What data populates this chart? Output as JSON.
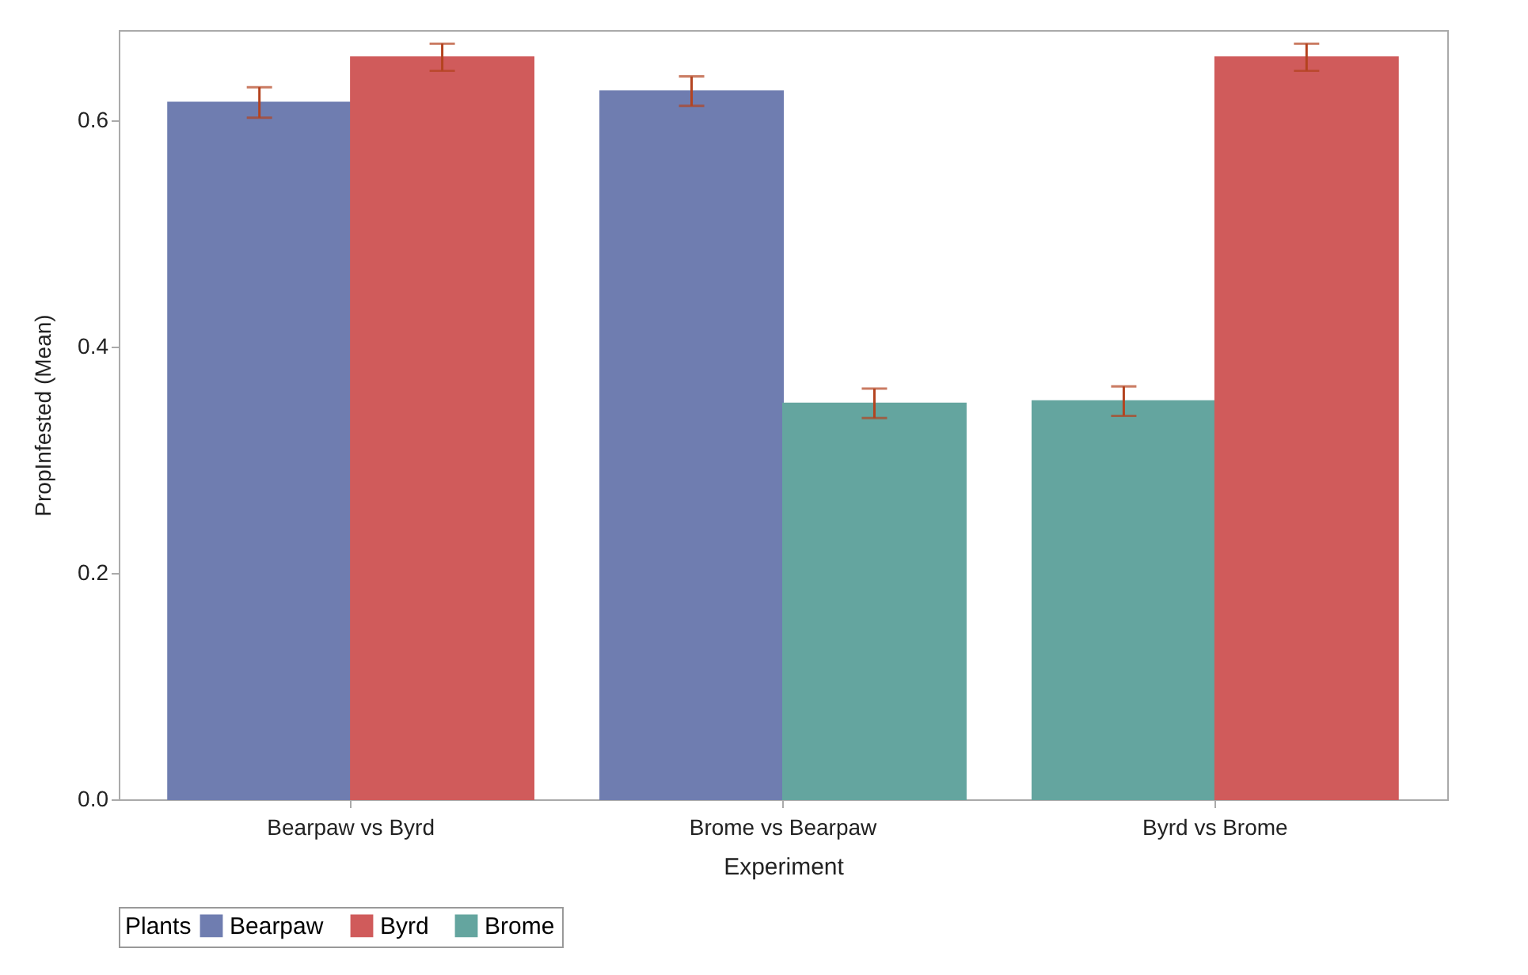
{
  "chart_data": {
    "type": "bar",
    "xlabel": "Experiment",
    "ylabel": "PropInfested (Mean)",
    "legend_title": "Plants",
    "categories": [
      "Bearpaw vs Byrd",
      "Brome vs Bearpaw",
      "Byrd vs Brome"
    ],
    "series": [
      {
        "name": "Bearpaw",
        "color": "#6f7db0",
        "values": [
          0.616,
          0.626,
          null
        ],
        "errors": [
          0.0135,
          0.013,
          null
        ]
      },
      {
        "name": "Brome",
        "color": "#64a59f",
        "values": [
          null,
          0.35,
          0.352
        ],
        "errors": [
          null,
          0.013,
          0.013
        ]
      },
      {
        "name": "Byrd",
        "color": "#d05b5b",
        "values": [
          0.656,
          null,
          0.656
        ],
        "errors": [
          0.012,
          null,
          0.012
        ]
      }
    ],
    "ylim": [
      0,
      0.68
    ],
    "yticks": [
      {
        "value": 0,
        "label": "0.0"
      },
      0.2,
      0.4,
      0.6
    ],
    "grid": false,
    "legend": "bottom"
  }
}
